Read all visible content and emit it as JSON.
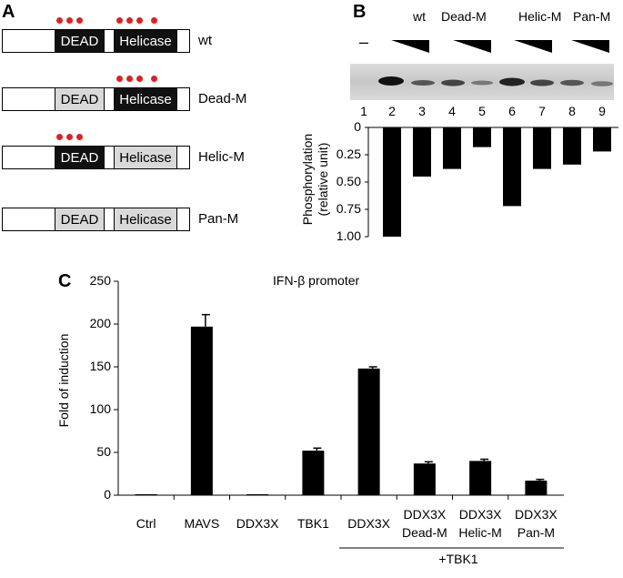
{
  "panels": {
    "a": "A",
    "b": "B",
    "c": "C"
  },
  "constructs": [
    {
      "name": "wt",
      "dead_label": "DEAD",
      "helicase_label": "Helicase",
      "dead_mutant": false,
      "helicase_mutant": false,
      "dead_dots": 3,
      "helicase_dots": 4
    },
    {
      "name": "Dead-M",
      "dead_label": "DEAD",
      "helicase_label": "Helicase",
      "dead_mutant": true,
      "helicase_mutant": false,
      "dead_dots": 0,
      "helicase_dots": 4
    },
    {
      "name": "Helic-M",
      "dead_label": "DEAD",
      "helicase_label": "Helicase",
      "dead_mutant": false,
      "helicase_mutant": true,
      "dead_dots": 3,
      "helicase_dots": 0
    },
    {
      "name": "Pan-M",
      "dead_label": "DEAD",
      "helicase_label": "Helicase",
      "dead_mutant": true,
      "helicase_mutant": true,
      "dead_dots": 0,
      "helicase_dots": 0
    }
  ],
  "colors": {
    "mutation_dot": "#e02020",
    "domain_dark": "#111111",
    "domain_mutant": "#d9d9d9",
    "bar": "#000000"
  },
  "panel_b": {
    "groups": [
      "wt",
      "Dead-M",
      "Helic-M",
      "Pan-M"
    ],
    "dash": "–",
    "lanes": [
      "1",
      "2",
      "3",
      "4",
      "5",
      "6",
      "7",
      "8",
      "9"
    ],
    "ylabel_line1": "Phosphorylation",
    "ylabel_line2": "(relative unit)"
  },
  "chart_data": [
    {
      "type": "bar",
      "categories": [
        "1",
        "2",
        "3",
        "4",
        "5",
        "6",
        "7",
        "8",
        "9"
      ],
      "values": [
        0,
        1.0,
        0.45,
        0.38,
        0.18,
        0.72,
        0.38,
        0.34,
        0.22
      ],
      "ylabel": "Phosphorylation (relative unit)",
      "yticks": [
        "0",
        "0.25",
        "0.50",
        "0.75",
        "1.00"
      ],
      "ylim": [
        0,
        1.0
      ],
      "y_inverted": true
    },
    {
      "type": "bar",
      "title": "IFN-β promoter",
      "categories": [
        "Ctrl",
        "MAVS",
        "DDX3X",
        "TBK1",
        "DDX3X",
        "DDX3X Dead-M",
        "DDX3X Helic-M",
        "DDX3X Pan-M"
      ],
      "values": [
        1,
        197,
        0.5,
        52,
        148,
        37,
        40,
        17
      ],
      "errors": [
        0,
        14,
        0,
        3,
        2,
        2,
        2,
        1.5
      ],
      "ylabel": "Fold of induction",
      "yticks": [
        "0",
        "50",
        "100",
        "150",
        "200",
        "250"
      ],
      "ylim": [
        0,
        250
      ],
      "group_label": "+TBK1"
    }
  ],
  "panel_c": {
    "title": "IFN-β promoter",
    "ylabel": "Fold of induction",
    "xlabels": [
      [
        "Ctrl"
      ],
      [
        "MAVS"
      ],
      [
        "DDX3X"
      ],
      [
        "TBK1"
      ],
      [
        "DDX3X"
      ],
      [
        "DDX3X",
        "Dead-M"
      ],
      [
        "DDX3X",
        "Helic-M"
      ],
      [
        "DDX3X",
        "Pan-M"
      ]
    ],
    "group_label": "+TBK1"
  }
}
